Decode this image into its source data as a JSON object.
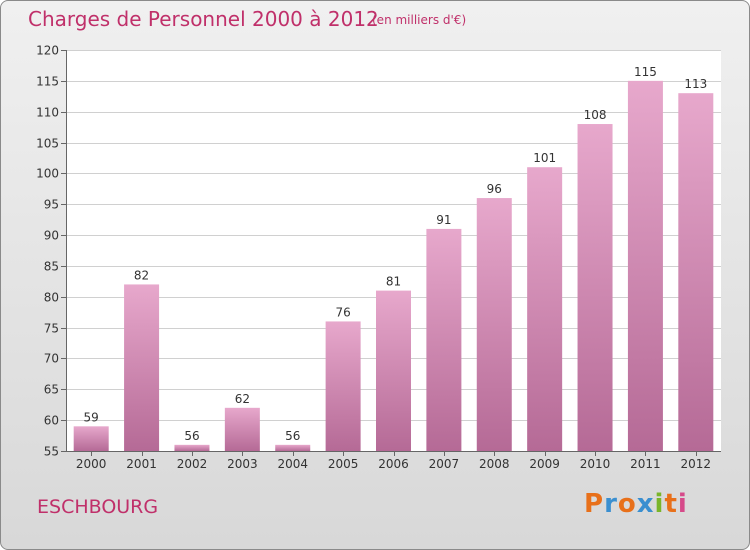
{
  "chart_data": {
    "type": "bar",
    "title": "Charges de Personnel 2000 à 2012",
    "subtitle": "(en milliers d'€)",
    "categories": [
      "2000",
      "2001",
      "2002",
      "2003",
      "2004",
      "2005",
      "2006",
      "2007",
      "2008",
      "2009",
      "2010",
      "2011",
      "2012"
    ],
    "values": [
      59,
      82,
      56,
      62,
      56,
      76,
      81,
      91,
      96,
      101,
      108,
      115,
      113
    ],
    "ylim": [
      55,
      120
    ],
    "yticks": [
      55,
      60,
      65,
      70,
      75,
      80,
      85,
      90,
      95,
      100,
      105,
      110,
      115,
      120
    ],
    "grid": true,
    "xlabel": "",
    "ylabel": "",
    "colors": {
      "bar_top": "#e7a8cc",
      "bar_bottom": "#b56a96",
      "title": "#c0306a"
    }
  },
  "commune": "ESCHBOURG",
  "logo": {
    "letters": [
      {
        "ch": "P",
        "color": "#e8701a"
      },
      {
        "ch": "r",
        "color": "#3a8fd0"
      },
      {
        "ch": "o",
        "color": "#e8701a"
      },
      {
        "ch": "x",
        "color": "#3a8fd0"
      },
      {
        "ch": "i",
        "color": "#7ab52a"
      },
      {
        "ch": "t",
        "color": "#e8701a"
      },
      {
        "ch": "i",
        "color": "#d64a8a"
      }
    ]
  }
}
